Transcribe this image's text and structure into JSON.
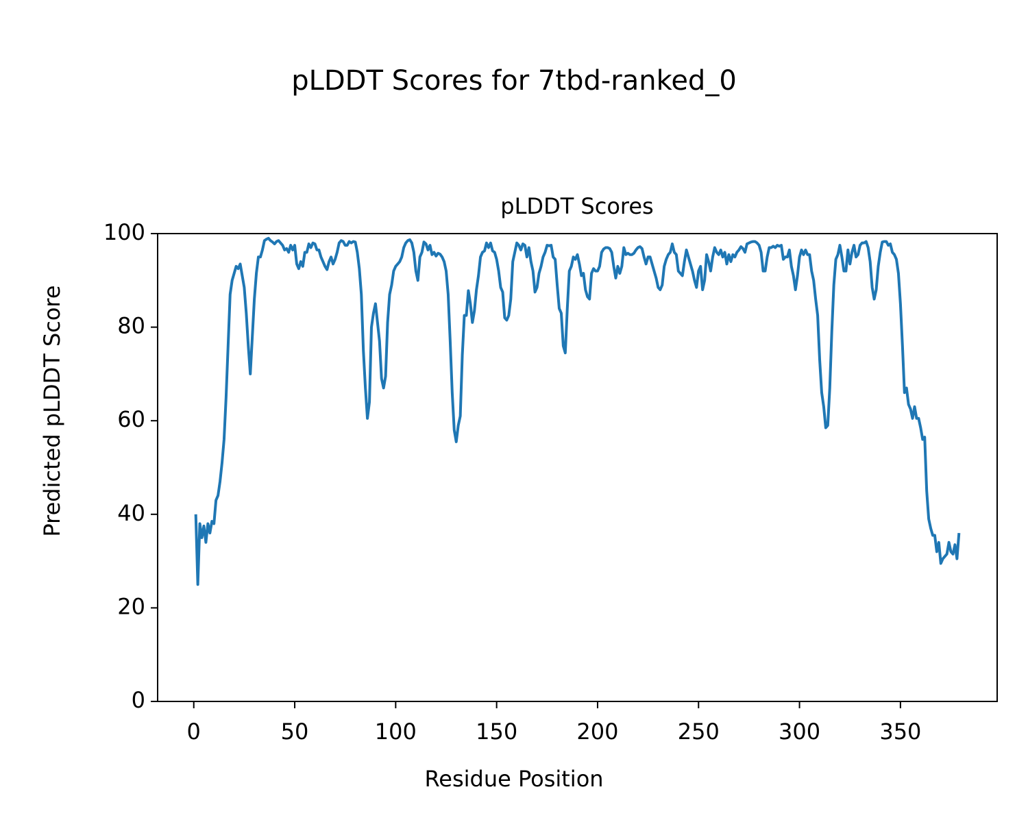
{
  "chart_data": {
    "type": "line",
    "suptitle": "pLDDT Scores for 7tbd-ranked_0",
    "title": "pLDDT Scores",
    "xlabel": "Residue Position",
    "ylabel": "Predicted pLDDT Score",
    "color": "#1f77b4",
    "xlim": [
      -17.9,
      397.9
    ],
    "ylim": [
      0,
      100
    ],
    "xticks": [
      0,
      50,
      100,
      150,
      200,
      250,
      300,
      350
    ],
    "yticks": [
      0,
      20,
      40,
      60,
      80,
      100
    ],
    "grid": false,
    "x": [
      1,
      2,
      3,
      4,
      5,
      6,
      7,
      8,
      9,
      10,
      11,
      12,
      13,
      14,
      15,
      16,
      17,
      18,
      19,
      20,
      21,
      22,
      23,
      24,
      25,
      26,
      27,
      28,
      29,
      30,
      31,
      32,
      33,
      34,
      35,
      36,
      37,
      38,
      39,
      40,
      41,
      42,
      43,
      44,
      45,
      46,
      47,
      48,
      49,
      50,
      51,
      52,
      53,
      54,
      55,
      56,
      57,
      58,
      59,
      60,
      61,
      62,
      63,
      64,
      65,
      66,
      67,
      68,
      69,
      70,
      71,
      72,
      73,
      74,
      75,
      76,
      77,
      78,
      79,
      80,
      81,
      82,
      83,
      84,
      85,
      86,
      87,
      88,
      89,
      90,
      91,
      92,
      93,
      94,
      95,
      96,
      97,
      98,
      99,
      100,
      101,
      102,
      103,
      104,
      105,
      106,
      107,
      108,
      109,
      110,
      111,
      112,
      113,
      114,
      115,
      116,
      117,
      118,
      119,
      120,
      121,
      122,
      123,
      124,
      125,
      126,
      127,
      128,
      129,
      130,
      131,
      132,
      133,
      134,
      135,
      136,
      137,
      138,
      139,
      140,
      141,
      142,
      143,
      144,
      145,
      146,
      147,
      148,
      149,
      150,
      151,
      152,
      153,
      154,
      155,
      156,
      157,
      158,
      159,
      160,
      161,
      162,
      163,
      164,
      165,
      166,
      167,
      168,
      169,
      170,
      171,
      172,
      173,
      174,
      175,
      176,
      177,
      178,
      179,
      180,
      181,
      182,
      183,
      184,
      185,
      186,
      187,
      188,
      189,
      190,
      191,
      192,
      193,
      194,
      195,
      196,
      197,
      198,
      199,
      200,
      201,
      202,
      203,
      204,
      205,
      206,
      207,
      208,
      209,
      210,
      211,
      212,
      213,
      214,
      215,
      216,
      217,
      218,
      219,
      220,
      221,
      222,
      223,
      224,
      225,
      226,
      227,
      228,
      229,
      230,
      231,
      232,
      233,
      234,
      235,
      236,
      237,
      238,
      239,
      240,
      241,
      242,
      243,
      244,
      245,
      246,
      247,
      248,
      249,
      250,
      251,
      252,
      253,
      254,
      255,
      256,
      257,
      258,
      259,
      260,
      261,
      262,
      263,
      264,
      265,
      266,
      267,
      268,
      269,
      270,
      271,
      272,
      273,
      274,
      275,
      276,
      277,
      278,
      279,
      280,
      281,
      282,
      283,
      284,
      285,
      286,
      287,
      288,
      289,
      290,
      291,
      292,
      293,
      294,
      295,
      296,
      297,
      298,
      299,
      300,
      301,
      302,
      303,
      304,
      305,
      306,
      307,
      308,
      309,
      310,
      311,
      312,
      313,
      314,
      315,
      316,
      317,
      318,
      319,
      320,
      321,
      322,
      323,
      324,
      325,
      326,
      327,
      328,
      329,
      330,
      331,
      332,
      333,
      334,
      335,
      336,
      337,
      338,
      339,
      340,
      341,
      342,
      343,
      344,
      345,
      346,
      347,
      348,
      349,
      350,
      351,
      352,
      353,
      354,
      355,
      356,
      357,
      358,
      359,
      360,
      361,
      362,
      363,
      364,
      365,
      366,
      367,
      368,
      369,
      370,
      371,
      372,
      373,
      374,
      375,
      376,
      377,
      378,
      379
    ],
    "values": [
      40,
      25,
      38,
      35,
      37.5,
      34,
      38,
      36,
      38.5,
      38,
      43,
      44,
      47,
      51,
      56,
      65,
      76,
      87,
      90,
      91.5,
      93,
      92.5,
      93.5,
      91,
      88.5,
      83,
      76,
      70,
      78,
      86,
      91.5,
      95,
      95,
      96.5,
      98.5,
      98.8,
      99,
      98.5,
      98.2,
      97.8,
      98.3,
      98.5,
      98,
      97.5,
      96.5,
      96.8,
      96,
      97.5,
      96.5,
      97.5,
      93.5,
      92.5,
      94,
      93,
      96,
      96,
      97.8,
      97,
      98,
      97.8,
      96.5,
      96.5,
      95,
      94,
      93,
      92.3,
      94,
      95,
      93.5,
      94.5,
      96,
      98,
      98.5,
      98.3,
      97.5,
      97.5,
      98.3,
      98,
      98.3,
      98.2,
      96,
      92.5,
      87,
      75,
      67,
      60.5,
      64,
      80,
      83,
      85,
      81,
      77,
      69,
      67,
      69.5,
      81,
      87,
      89,
      92,
      93,
      93.5,
      94,
      95,
      97,
      98,
      98.5,
      98.7,
      98,
      96,
      92,
      90,
      95,
      96,
      98.2,
      97.8,
      96.5,
      97.5,
      95.5,
      96,
      95.2,
      95.8,
      95.6,
      95,
      94,
      92,
      87,
      77,
      66,
      58,
      55.5,
      59,
      61,
      74,
      82.5,
      82.5,
      87.8,
      85,
      81,
      83.5,
      88,
      91,
      95,
      96,
      96.3,
      98,
      97,
      98,
      96.3,
      96,
      94.5,
      92,
      88.5,
      87.5,
      82,
      81.5,
      82.5,
      86,
      94,
      96,
      98,
      97.5,
      96.5,
      97.8,
      97.5,
      95,
      97,
      94,
      92,
      87.5,
      88.5,
      91.5,
      93,
      95,
      96,
      97.5,
      97.4,
      97.5,
      95,
      94.5,
      89,
      84,
      83,
      76,
      74.5,
      84,
      92,
      93,
      95,
      94.5,
      95.5,
      93.5,
      91,
      91.5,
      88,
      86.5,
      86,
      91.5,
      92.5,
      92,
      92,
      93,
      96,
      96.7,
      97,
      97,
      96.8,
      96,
      93,
      90.5,
      93,
      91.5,
      93,
      97,
      95.5,
      95.8,
      95.5,
      95.5,
      95.8,
      96.5,
      97,
      97.2,
      96.8,
      95,
      93.5,
      95,
      95,
      93.5,
      92,
      90.5,
      88.5,
      88,
      89,
      93,
      94.5,
      95.5,
      96,
      97.8,
      96,
      95.5,
      92,
      91.5,
      91,
      94,
      96.5,
      95,
      93.5,
      92,
      90,
      88.5,
      92,
      93,
      88,
      90,
      95.5,
      94,
      92,
      95,
      97,
      96,
      95.5,
      96.5,
      95,
      96,
      93.5,
      95.5,
      94,
      95.5,
      95,
      96,
      96.5,
      97.2,
      96.8,
      96,
      97.8,
      98,
      98.2,
      98.3,
      98.3,
      98,
      97.5,
      96,
      92,
      92,
      95,
      97,
      97,
      97.3,
      97,
      97.5,
      97.3,
      97.5,
      94.5,
      95,
      95,
      96.5,
      93,
      91,
      88,
      91,
      95,
      96.5,
      95.5,
      96.5,
      95.5,
      95.5,
      92,
      90,
      86,
      82.5,
      73,
      66,
      63,
      58.5,
      59,
      67,
      79,
      89,
      94.5,
      95.5,
      97.5,
      95,
      92,
      92,
      96.5,
      93.5,
      96,
      97.5,
      95,
      95.5,
      97.5,
      98,
      98,
      98.3,
      97,
      94,
      88.5,
      86,
      88,
      93,
      96,
      98.2,
      98.3,
      98.3,
      97.5,
      97.8,
      96,
      95.5,
      94.5,
      91.5,
      85,
      76,
      66,
      67,
      63.5,
      62.5,
      60.5,
      63,
      60.5,
      60.5,
      58.5,
      56,
      56.5,
      45,
      39,
      37,
      35.5,
      35.5,
      32,
      34,
      29.5,
      30.5,
      31,
      31.5,
      34,
      32,
      31.5,
      33.5,
      30.5,
      36
    ]
  }
}
